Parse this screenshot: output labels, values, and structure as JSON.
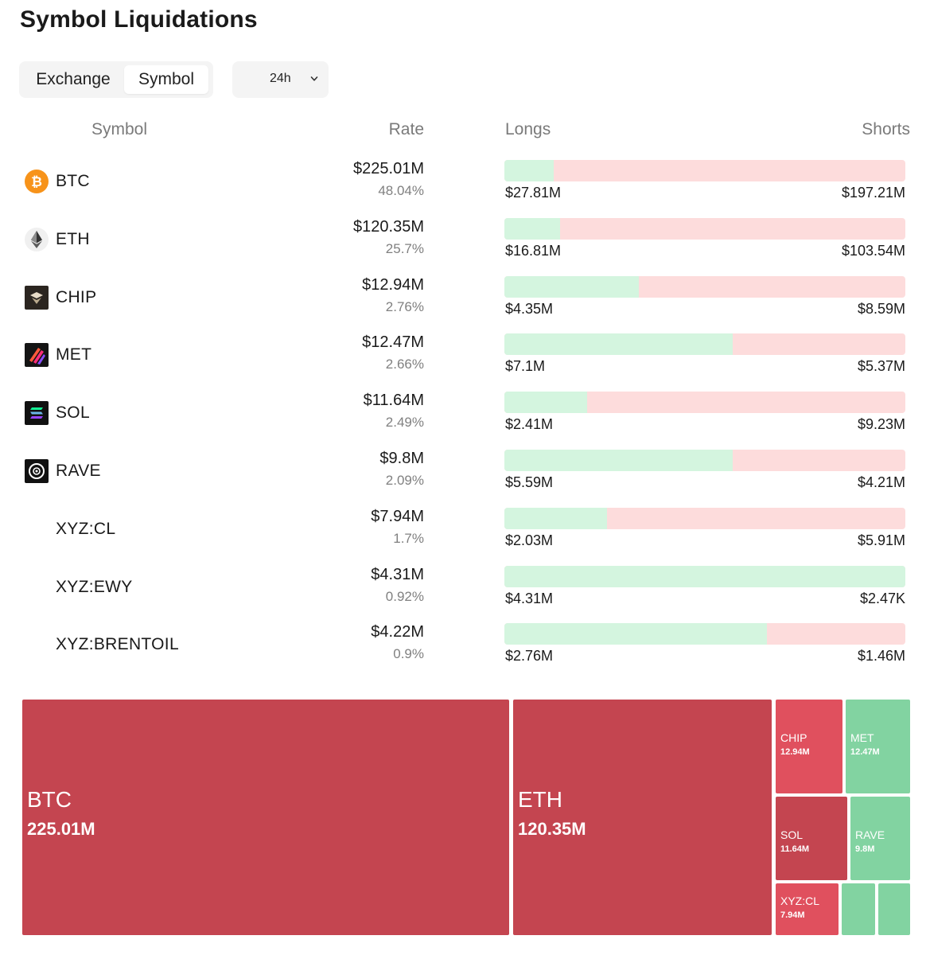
{
  "page": {
    "title": "Symbol Liquidations"
  },
  "tabs": {
    "exchange": "Exchange",
    "symbol": "Symbol",
    "active": "Symbol"
  },
  "period": {
    "value": "24h"
  },
  "columns": {
    "symbol": "Symbol",
    "rate": "Rate",
    "longs": "Longs",
    "shorts": "Shorts"
  },
  "colors": {
    "long_bar": "#d4f5df",
    "short_bar": "#fddcdc",
    "treemap_short_dark": "#c44550",
    "treemap_short_light": "#e0505e",
    "treemap_long": "#82d3a1"
  },
  "rows": [
    {
      "symbol": "BTC",
      "icon": "bitcoin-icon",
      "rate": "$225.01M",
      "pct": "48.04%",
      "longs": "$27.81M",
      "shorts": "$197.21M",
      "long_share": 0.1236
    },
    {
      "symbol": "ETH",
      "icon": "ethereum-icon",
      "rate": "$120.35M",
      "pct": "25.7%",
      "longs": "$16.81M",
      "shorts": "$103.54M",
      "long_share": 0.1397
    },
    {
      "symbol": "CHIP",
      "icon": "chip-icon",
      "rate": "$12.94M",
      "pct": "2.76%",
      "longs": "$4.35M",
      "shorts": "$8.59M",
      "long_share": 0.3362
    },
    {
      "symbol": "MET",
      "icon": "met-icon",
      "rate": "$12.47M",
      "pct": "2.66%",
      "longs": "$7.1M",
      "shorts": "$5.37M",
      "long_share": 0.5694
    },
    {
      "symbol": "SOL",
      "icon": "solana-icon",
      "rate": "$11.64M",
      "pct": "2.49%",
      "longs": "$2.41M",
      "shorts": "$9.23M",
      "long_share": 0.207
    },
    {
      "symbol": "RAVE",
      "icon": "rave-icon",
      "rate": "$9.8M",
      "pct": "2.09%",
      "longs": "$5.59M",
      "shorts": "$4.21M",
      "long_share": 0.5704
    },
    {
      "symbol": "XYZ:CL",
      "icon": "",
      "rate": "$7.94M",
      "pct": "1.7%",
      "longs": "$2.03M",
      "shorts": "$5.91M",
      "long_share": 0.2557
    },
    {
      "symbol": "XYZ:EWY",
      "icon": "",
      "rate": "$4.31M",
      "pct": "0.92%",
      "longs": "$4.31M",
      "shorts": "$2.47K",
      "long_share": 0.9994
    },
    {
      "symbol": "XYZ:BRENTOIL",
      "icon": "",
      "rate": "$4.22M",
      "pct": "0.9%",
      "longs": "$2.76M",
      "shorts": "$1.46M",
      "long_share": 0.654
    }
  ],
  "treemap": [
    {
      "name": "BTC",
      "value": "225.01M",
      "side": "short"
    },
    {
      "name": "ETH",
      "value": "120.35M",
      "side": "short"
    },
    {
      "name": "CHIP",
      "value": "12.94M",
      "side": "short"
    },
    {
      "name": "MET",
      "value": "12.47M",
      "side": "long"
    },
    {
      "name": "SOL",
      "value": "11.64M",
      "side": "short"
    },
    {
      "name": "RAVE",
      "value": "9.8M",
      "side": "long"
    },
    {
      "name": "XYZ:CL",
      "value": "7.94M",
      "side": "short"
    },
    {
      "name": "",
      "value": "",
      "side": "long"
    },
    {
      "name": "",
      "value": "",
      "side": "long"
    }
  ]
}
